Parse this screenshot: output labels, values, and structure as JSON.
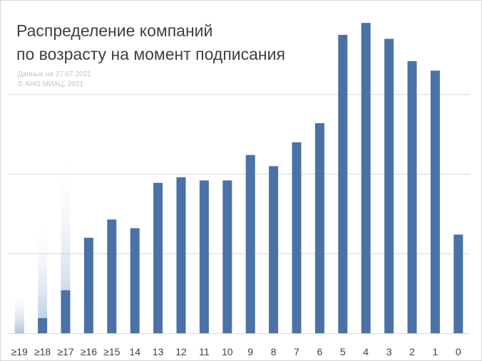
{
  "title_lines": [
    "Распределение компаний",
    "по возрасту на момент подписания"
  ],
  "source_lines": [
    "Данные на 27.07.2021",
    "© АНО МИАЦ, 2021"
  ],
  "colors": {
    "bar": "#4a72a6",
    "ghost": "#9fb8da",
    "grid": "#d9d9d9",
    "axis": "#d9d9d9",
    "text": "#404040"
  },
  "chart_data": {
    "type": "bar",
    "title": "Распределение компаний по возрасту на момент подписания",
    "xlabel": "",
    "ylabel": "",
    "ylim": [
      0,
      40
    ],
    "grid": true,
    "y_tick_labels_shown": false,
    "categories": [
      "≥19",
      "≥18",
      "≥17",
      "≥16",
      "≥15",
      "14",
      "13",
      "12",
      "11",
      "10",
      "9",
      "8",
      "7",
      "6",
      "5",
      "4",
      "3",
      "2",
      "1",
      "0"
    ],
    "series": [
      {
        "values": [
          0,
          1.9,
          5.4,
          12.0,
          14.3,
          13.2,
          18.9,
          19.6,
          19.2,
          19.2,
          22.4,
          21.0,
          24.0,
          26.4,
          37.5,
          39.0,
          37.0,
          34.2,
          33.0,
          12.4
        ]
      }
    ],
    "ghost_values": [
      5.2,
      14.6,
      23.0,
      6.2,
      0,
      0,
      0,
      0,
      0,
      0,
      0,
      0,
      0,
      0,
      0,
      0,
      0,
      0,
      0,
      0
    ]
  }
}
